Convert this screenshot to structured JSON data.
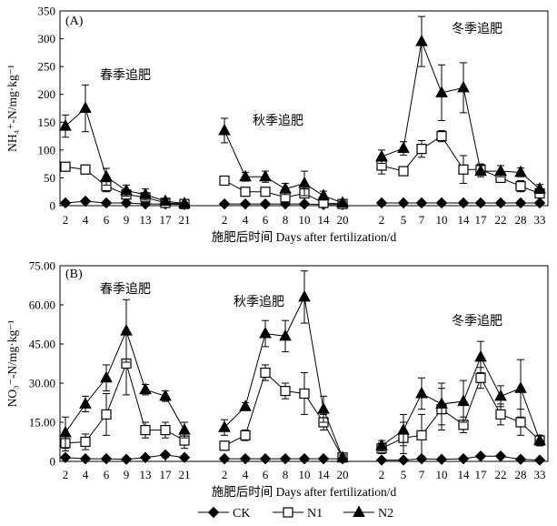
{
  "legend": [
    {
      "name": "CK",
      "marker": "diamond"
    },
    {
      "name": "N1",
      "marker": "square"
    },
    {
      "name": "N2",
      "marker": "triangle"
    }
  ],
  "chart_data": [
    {
      "type": "line",
      "panel": "(A)",
      "ylabel": "NH₄⁺-N/mg·kg⁻¹",
      "xlabel": "施肥后时间 Days after fertilization/d",
      "ylim": [
        0,
        350
      ],
      "yticks": [
        "0",
        "50",
        "100",
        "150",
        "200",
        "250",
        "300",
        "350"
      ],
      "groups": [
        {
          "label": "春季追肥",
          "x": [
            "2",
            "4",
            "6",
            "9",
            "13",
            "17",
            "21"
          ],
          "series": [
            {
              "name": "CK",
              "values": [
                5,
                8,
                5,
                5,
                3,
                3,
                2
              ],
              "errors": [
                0,
                0,
                0,
                0,
                0,
                0,
                0
              ]
            },
            {
              "name": "N1",
              "values": [
                70,
                65,
                35,
                20,
                15,
                5,
                3
              ],
              "errors": [
                5,
                8,
                10,
                8,
                8,
                3,
                2
              ]
            },
            {
              "name": "N2",
              "values": [
                143,
                175,
                52,
                27,
                20,
                8,
                4
              ],
              "errors": [
                20,
                42,
                15,
                10,
                10,
                4,
                2
              ]
            }
          ]
        },
        {
          "label": "秋季追肥",
          "x": [
            "2",
            "4",
            "6",
            "8",
            "10",
            "14",
            "20"
          ],
          "series": [
            {
              "name": "CK",
              "values": [
                3,
                3,
                3,
                3,
                3,
                2,
                2
              ],
              "errors": [
                0,
                0,
                0,
                0,
                0,
                0,
                0
              ]
            },
            {
              "name": "N1",
              "values": [
                45,
                25,
                25,
                15,
                22,
                5,
                3
              ],
              "errors": [
                8,
                5,
                5,
                5,
                8,
                3,
                2
              ]
            },
            {
              "name": "N2",
              "values": [
                135,
                52,
                52,
                30,
                40,
                18,
                5
              ],
              "errors": [
                22,
                8,
                10,
                10,
                22,
                8,
                3
              ]
            }
          ]
        },
        {
          "label": "冬季追肥",
          "x": [
            "2",
            "5",
            "7",
            "10",
            "14",
            "17",
            "22",
            "28",
            "33"
          ],
          "series": [
            {
              "name": "CK",
              "values": [
                5,
                5,
                5,
                5,
                5,
                5,
                5,
                5,
                5
              ],
              "errors": [
                0,
                0,
                0,
                0,
                0,
                0,
                0,
                0,
                0
              ]
            },
            {
              "name": "N1",
              "values": [
                72,
                62,
                102,
                125,
                65,
                65,
                50,
                35,
                22
              ],
              "errors": [
                15,
                8,
                15,
                10,
                25,
                10,
                8,
                10,
                8
              ]
            },
            {
              "name": "N2",
              "values": [
                88,
                103,
                295,
                203,
                212,
                62,
                62,
                60,
                30
              ],
              "errors": [
                12,
                12,
                45,
                50,
                45,
                10,
                10,
                8,
                8
              ]
            }
          ]
        }
      ]
    },
    {
      "type": "line",
      "panel": "(B)",
      "ylabel": "NO₃⁻-N/mg·kg⁻¹",
      "xlabel": "施肥后时间 Days after fertilization/d",
      "ylim": [
        0,
        75
      ],
      "yticks": [
        "0",
        "15.00",
        "30.00",
        "45.00",
        "60.00",
        "75.00"
      ],
      "groups": [
        {
          "label": "春季追肥",
          "x": [
            "2",
            "4",
            "6",
            "9",
            "13",
            "17",
            "21"
          ],
          "series": [
            {
              "name": "CK",
              "values": [
                1.5,
                1.0,
                1.0,
                0.8,
                1.5,
                2.5,
                1.5
              ],
              "errors": [
                0.5,
                0.5,
                0.5,
                0.5,
                0.5,
                0.8,
                0.5
              ]
            },
            {
              "name": "N1",
              "values": [
                7,
                7.5,
                18,
                37.5,
                12,
                12,
                8
              ],
              "errors": [
                3,
                3,
                8,
                12,
                3,
                3,
                3
              ]
            },
            {
              "name": "N2",
              "values": [
                11,
                22,
                32,
                50,
                27.5,
                25,
                12
              ],
              "errors": [
                6,
                3,
                5,
                12,
                2,
                2,
                3
              ]
            }
          ]
        },
        {
          "label": "秋季追肥",
          "x": [
            "2",
            "4",
            "6",
            "8",
            "10",
            "14",
            "20"
          ],
          "series": [
            {
              "name": "CK",
              "values": [
                1.0,
                1.0,
                1.0,
                1.0,
                1.0,
                1.0,
                1.0
              ],
              "errors": [
                0.3,
                0.3,
                0.3,
                0.3,
                0.3,
                0.3,
                0.3
              ]
            },
            {
              "name": "N1",
              "values": [
                6,
                10,
                34,
                27,
                26,
                15,
                1.5
              ],
              "errors": [
                1,
                2,
                3,
                3,
                8,
                3,
                1
              ]
            },
            {
              "name": "N2",
              "values": [
                13,
                21,
                49,
                48,
                63,
                20,
                1.5
              ],
              "errors": [
                3,
                1.5,
                5,
                6,
                10,
                5,
                1
              ]
            }
          ]
        },
        {
          "label": "冬季追肥",
          "x": [
            "2",
            "5",
            "7",
            "10",
            "14",
            "17",
            "22",
            "28",
            "33"
          ],
          "series": [
            {
              "name": "CK",
              "values": [
                0.5,
                0.5,
                1.0,
                0.8,
                1.0,
                2.0,
                2.0,
                0.8,
                0.5
              ],
              "errors": [
                0.3,
                0.3,
                0.3,
                0.3,
                0.3,
                0.5,
                0.5,
                0.3,
                0.3
              ]
            },
            {
              "name": "N1",
              "values": [
                5,
                9,
                10,
                20,
                14,
                32,
                18,
                15,
                8
              ],
              "errors": [
                2,
                6,
                8,
                8,
                3,
                4,
                4,
                5,
                2
              ]
            },
            {
              "name": "N2",
              "values": [
                6,
                12,
                26,
                22,
                23,
                40,
                25,
                28,
                8
              ],
              "errors": [
                2,
                6,
                6,
                8,
                8,
                6,
                4,
                11,
                2
              ]
            }
          ]
        }
      ]
    }
  ]
}
